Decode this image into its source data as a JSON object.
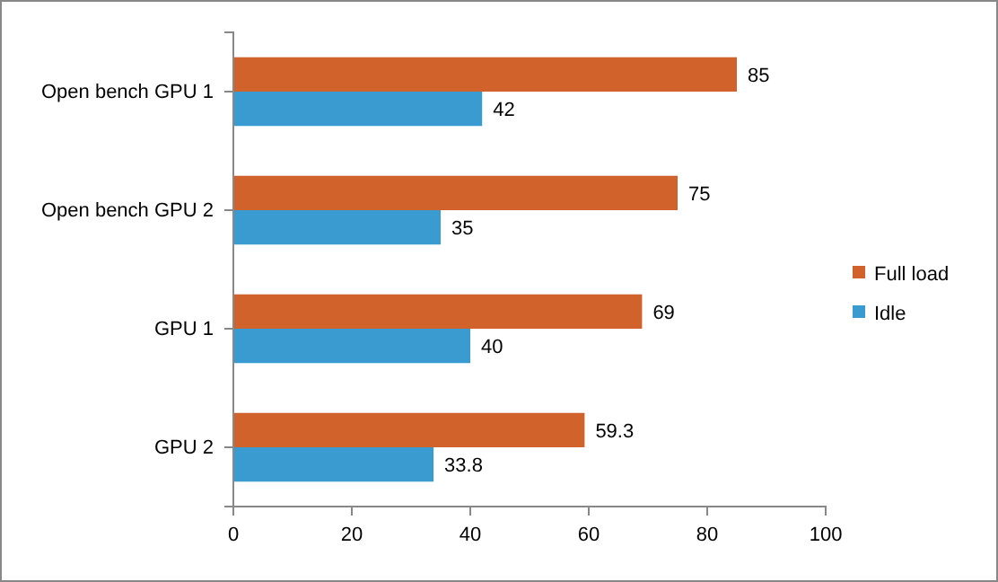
{
  "chart_data": {
    "type": "bar",
    "orientation": "horizontal",
    "categories": [
      "Open bench GPU 1",
      "Open bench GPU 2",
      "GPU 1",
      "GPU 2"
    ],
    "series": [
      {
        "name": "Full load",
        "color": "#d2622c",
        "values": [
          85,
          75,
          69,
          59.3
        ]
      },
      {
        "name": "Idle",
        "color": "#3a9bd0",
        "values": [
          42,
          35,
          40,
          33.8
        ]
      }
    ],
    "xlim": [
      0,
      100
    ],
    "xticks": [
      0,
      20,
      40,
      60,
      80,
      100
    ],
    "data_labels": true,
    "legend": "right",
    "grid": false
  }
}
